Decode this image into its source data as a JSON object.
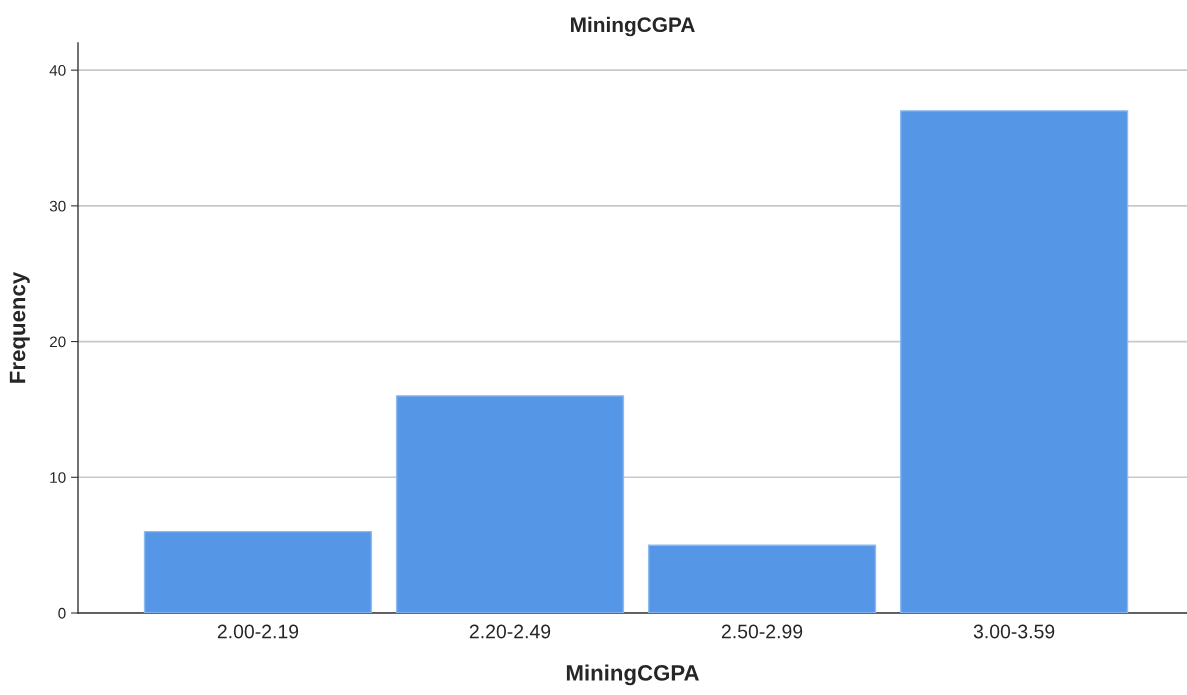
{
  "chart_data": {
    "type": "bar",
    "title": "MiningCGPA",
    "xlabel": "MiningCGPA",
    "ylabel": "Frequency",
    "categories": [
      "2.00-2.19",
      "2.20-2.49",
      "2.50-2.99",
      "3.00-3.59"
    ],
    "values": [
      6,
      16,
      5,
      37
    ],
    "color": "#5596e6",
    "ylim": [
      0,
      42
    ],
    "yticks": [
      0,
      10,
      20,
      30,
      40
    ],
    "grid": "y"
  }
}
